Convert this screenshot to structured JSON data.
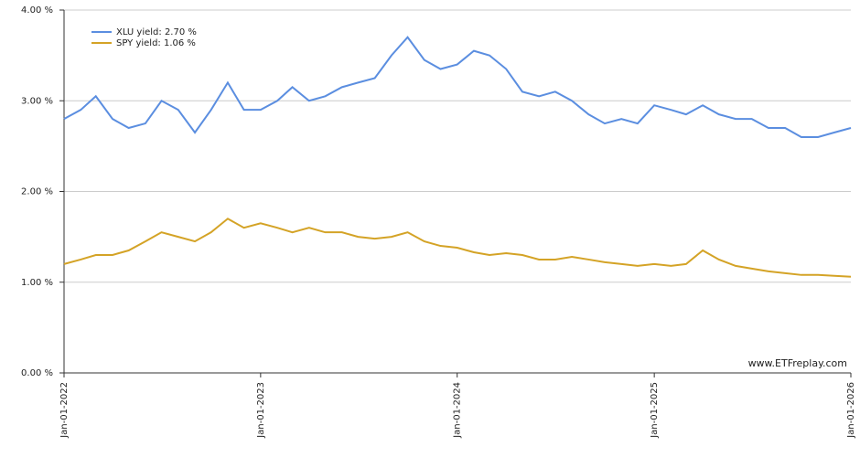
{
  "chart_data": {
    "type": "line",
    "annotation": "www.ETFreplay.com",
    "x": [
      "2022-01-01",
      "2022-02-01",
      "2022-03-01",
      "2022-04-01",
      "2022-05-01",
      "2022-06-01",
      "2022-07-01",
      "2022-08-01",
      "2022-09-01",
      "2022-10-01",
      "2022-11-01",
      "2022-12-01",
      "2023-01-01",
      "2023-02-01",
      "2023-03-01",
      "2023-04-01",
      "2023-05-01",
      "2023-06-01",
      "2023-07-01",
      "2023-08-01",
      "2023-09-01",
      "2023-10-01",
      "2023-11-01",
      "2023-12-01",
      "2024-01-01",
      "2024-02-01",
      "2024-03-01",
      "2024-04-01",
      "2024-05-01",
      "2024-06-01",
      "2024-07-01",
      "2024-08-01",
      "2024-09-01",
      "2024-10-01",
      "2024-11-01",
      "2024-12-01",
      "2025-01-01",
      "2025-02-01",
      "2025-03-01",
      "2025-04-01",
      "2025-05-01",
      "2025-06-01",
      "2025-07-01",
      "2025-08-01",
      "2025-09-01",
      "2025-10-01",
      "2025-11-01",
      "2025-12-01",
      "2026-01-01"
    ],
    "series": [
      {
        "name": "XLU yield: 2.70 %",
        "color": "#5b8ee0",
        "values": [
          2.8,
          2.9,
          3.05,
          2.8,
          2.7,
          2.75,
          3.0,
          2.9,
          2.65,
          2.9,
          3.2,
          2.9,
          2.9,
          3.0,
          3.15,
          3.0,
          3.05,
          3.15,
          3.2,
          3.25,
          3.5,
          3.7,
          3.45,
          3.35,
          3.4,
          3.55,
          3.5,
          3.35,
          3.1,
          3.05,
          3.1,
          3.0,
          2.85,
          2.75,
          2.8,
          2.75,
          2.95,
          2.9,
          2.85,
          2.95,
          2.85,
          2.8,
          2.8,
          2.7,
          2.7,
          2.6,
          2.6,
          2.65,
          2.7
        ]
      },
      {
        "name": "SPY yield: 1.06 %",
        "color": "#d4a326",
        "values": [
          1.2,
          1.25,
          1.3,
          1.3,
          1.35,
          1.45,
          1.55,
          1.5,
          1.45,
          1.55,
          1.7,
          1.6,
          1.65,
          1.6,
          1.55,
          1.6,
          1.55,
          1.55,
          1.5,
          1.48,
          1.5,
          1.55,
          1.45,
          1.4,
          1.38,
          1.33,
          1.3,
          1.32,
          1.3,
          1.25,
          1.25,
          1.28,
          1.25,
          1.22,
          1.2,
          1.18,
          1.2,
          1.18,
          1.2,
          1.35,
          1.25,
          1.18,
          1.15,
          1.12,
          1.1,
          1.08,
          1.08,
          1.07,
          1.06
        ]
      }
    ],
    "ylim": [
      0,
      4
    ],
    "yticks": [
      {
        "value": 0,
        "label": "0.00 %"
      },
      {
        "value": 1,
        "label": "1.00 %"
      },
      {
        "value": 2,
        "label": "2.00 %"
      },
      {
        "value": 3,
        "label": "3.00 %"
      },
      {
        "value": 4,
        "label": "4.00 %"
      }
    ],
    "xlim": [
      "2022-01-01",
      "2026-01-01"
    ],
    "xticks": [
      {
        "value": "2022-01-01",
        "label": "Jan-01-2022"
      },
      {
        "value": "2023-01-01",
        "label": "Jan-01-2023"
      },
      {
        "value": "2024-01-01",
        "label": "Jan-01-2024"
      },
      {
        "value": "2025-01-01",
        "label": "Jan-01-2025"
      },
      {
        "value": "2026-01-01",
        "label": "Jan-01-2026"
      }
    ],
    "grid": true
  }
}
